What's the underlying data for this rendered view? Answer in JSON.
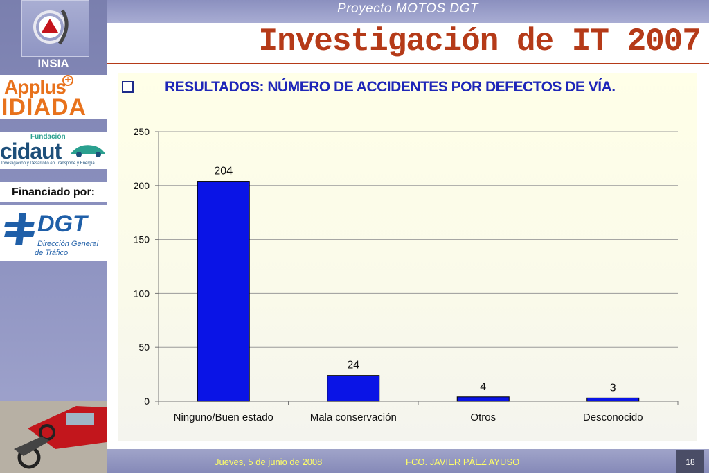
{
  "header": {
    "project": "Proyecto MOTOS DGT",
    "title": "Investigación de IT 2007"
  },
  "sidebar": {
    "insia": "INSIA",
    "applus": "Applus",
    "idiada": "IDIADA",
    "cidaut_fundacion": "Fundación",
    "cidaut": "cidaut",
    "cidaut_sub": "Investigación y Desarrollo en Transporte y Energía",
    "financiado": "Financiado por:",
    "dgt": "DGT",
    "dgt_sub1": "Dirección General",
    "dgt_sub2": "de Tráfico"
  },
  "subtitle": "RESULTADOS: NÚMERO DE ACCIDENTES POR DEFECTOS DE VÍA.",
  "chart_data": {
    "type": "bar",
    "categories": [
      "Ninguno/Buen estado",
      "Mala conservación",
      "Otros",
      "Desconocido"
    ],
    "values": [
      204,
      24,
      4,
      3
    ],
    "data_labels": [
      "204",
      "24",
      "4",
      "3"
    ],
    "yticks": [
      "0",
      "50",
      "100",
      "150",
      "200",
      "250"
    ],
    "ylim": [
      0,
      250
    ],
    "grid": true,
    "bar_color": "#0a14e6",
    "title": "",
    "xlabel": "",
    "ylabel": ""
  },
  "footer": {
    "date": "Jueves, 5 de junio de 2008",
    "author": "FCO. JAVIER PÁEZ AYUSO",
    "page": "18"
  }
}
